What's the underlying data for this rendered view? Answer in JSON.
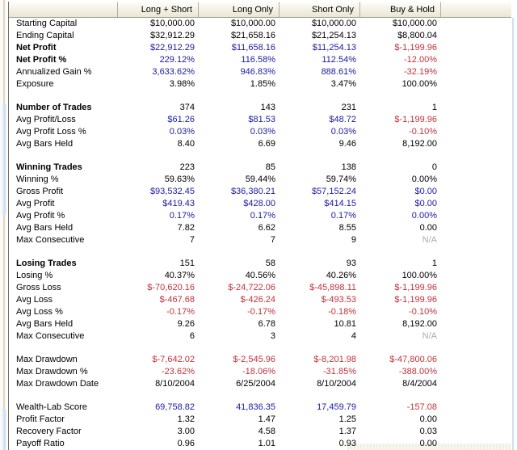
{
  "table": {
    "columns": [
      {
        "key": "label",
        "label": ""
      },
      {
        "key": "long-short",
        "label": "Long + Short"
      },
      {
        "key": "long-only",
        "label": "Long Only"
      },
      {
        "key": "short-only",
        "label": "Short Only"
      },
      {
        "key": "buy-hold",
        "label": "Buy & Hold"
      }
    ],
    "color_map": {
      "k": "#000000",
      "b": "#1A1AA6",
      "r": "#C2323A",
      "g": "#ABABAB"
    },
    "rows": [
      {
        "label": "Starting Capital",
        "bold": false,
        "values": [
          "$10,000.00",
          "$10,000.00",
          "$10,000.00",
          "$10,000.00"
        ],
        "colors": [
          "k",
          "k",
          "k",
          "k"
        ]
      },
      {
        "label": "Ending Capital",
        "bold": false,
        "values": [
          "$32,912.29",
          "$21,658.16",
          "$21,254.13",
          "$8,800.04"
        ],
        "colors": [
          "k",
          "k",
          "k",
          "k"
        ]
      },
      {
        "label": "Net Profit",
        "bold": true,
        "values": [
          "$22,912.29",
          "$11,658.16",
          "$11,254.13",
          "$-1,199.96"
        ],
        "colors": [
          "b",
          "b",
          "b",
          "r"
        ]
      },
      {
        "label": "Net Profit %",
        "bold": true,
        "values": [
          "229.12%",
          "116.58%",
          "112.54%",
          "-12.00%"
        ],
        "colors": [
          "b",
          "b",
          "b",
          "r"
        ]
      },
      {
        "label": "Annualized Gain %",
        "bold": false,
        "values": [
          "3,633.62%",
          "946.83%",
          "888.61%",
          "-32.19%"
        ],
        "colors": [
          "b",
          "b",
          "b",
          "r"
        ]
      },
      {
        "label": "Exposure",
        "bold": false,
        "values": [
          "3.98%",
          "1.85%",
          "3.47%",
          "100.00%"
        ],
        "colors": [
          "k",
          "k",
          "k",
          "k"
        ]
      },
      {
        "spacer": true
      },
      {
        "label": "Number of Trades",
        "bold": true,
        "values": [
          "374",
          "143",
          "231",
          "1"
        ],
        "colors": [
          "k",
          "k",
          "k",
          "k"
        ]
      },
      {
        "label": "Avg Profit/Loss",
        "bold": false,
        "values": [
          "$61.26",
          "$81.53",
          "$48.72",
          "$-1,199.96"
        ],
        "colors": [
          "b",
          "b",
          "b",
          "r"
        ]
      },
      {
        "label": "Avg Profit Loss %",
        "bold": false,
        "values": [
          "0.03%",
          "0.03%",
          "0.03%",
          "-0.10%"
        ],
        "colors": [
          "b",
          "b",
          "b",
          "r"
        ]
      },
      {
        "label": "Avg Bars Held",
        "bold": false,
        "values": [
          "8.40",
          "6.69",
          "9.46",
          "8,192.00"
        ],
        "colors": [
          "k",
          "k",
          "k",
          "k"
        ]
      },
      {
        "spacer": true
      },
      {
        "label": "Winning Trades",
        "bold": true,
        "values": [
          "223",
          "85",
          "138",
          "0"
        ],
        "colors": [
          "k",
          "k",
          "k",
          "k"
        ]
      },
      {
        "label": "Winning %",
        "bold": false,
        "values": [
          "59.63%",
          "59.44%",
          "59.74%",
          "0.00%"
        ],
        "colors": [
          "k",
          "k",
          "k",
          "k"
        ]
      },
      {
        "label": "Gross Profit",
        "bold": false,
        "values": [
          "$93,532.45",
          "$36,380.21",
          "$57,152.24",
          "$0.00"
        ],
        "colors": [
          "b",
          "b",
          "b",
          "b"
        ]
      },
      {
        "label": "Avg Profit",
        "bold": false,
        "values": [
          "$419.43",
          "$428.00",
          "$414.15",
          "$0.00"
        ],
        "colors": [
          "b",
          "b",
          "b",
          "b"
        ]
      },
      {
        "label": "Avg Profit %",
        "bold": false,
        "values": [
          "0.17%",
          "0.17%",
          "0.17%",
          "0.00%"
        ],
        "colors": [
          "b",
          "b",
          "b",
          "b"
        ]
      },
      {
        "label": "Avg Bars Held",
        "bold": false,
        "values": [
          "7.82",
          "6.62",
          "8.55",
          "0.00"
        ],
        "colors": [
          "k",
          "k",
          "k",
          "k"
        ]
      },
      {
        "label": "Max Consecutive",
        "bold": false,
        "values": [
          "7",
          "7",
          "9",
          "N/A"
        ],
        "colors": [
          "k",
          "k",
          "k",
          "g"
        ]
      },
      {
        "spacer": true
      },
      {
        "label": "Losing Trades",
        "bold": true,
        "values": [
          "151",
          "58",
          "93",
          "1"
        ],
        "colors": [
          "k",
          "k",
          "k",
          "k"
        ]
      },
      {
        "label": "Losing %",
        "bold": false,
        "values": [
          "40.37%",
          "40.56%",
          "40.26%",
          "100.00%"
        ],
        "colors": [
          "k",
          "k",
          "k",
          "k"
        ]
      },
      {
        "label": "Gross Loss",
        "bold": false,
        "values": [
          "$-70,620.16",
          "$-24,722.06",
          "$-45,898.11",
          "$-1,199.96"
        ],
        "colors": [
          "r",
          "r",
          "r",
          "r"
        ]
      },
      {
        "label": "Avg Loss",
        "bold": false,
        "values": [
          "$-467.68",
          "$-426.24",
          "$-493.53",
          "$-1,199.96"
        ],
        "colors": [
          "r",
          "r",
          "r",
          "r"
        ]
      },
      {
        "label": "Avg Loss %",
        "bold": false,
        "values": [
          "-0.17%",
          "-0.17%",
          "-0.18%",
          "-0.10%"
        ],
        "colors": [
          "r",
          "r",
          "r",
          "r"
        ]
      },
      {
        "label": "Avg Bars Held",
        "bold": false,
        "values": [
          "9.26",
          "6.78",
          "10.81",
          "8,192.00"
        ],
        "colors": [
          "k",
          "k",
          "k",
          "k"
        ]
      },
      {
        "label": "Max Consecutive",
        "bold": false,
        "values": [
          "6",
          "3",
          "4",
          "N/A"
        ],
        "colors": [
          "k",
          "k",
          "k",
          "g"
        ]
      },
      {
        "spacer": true
      },
      {
        "label": "Max Drawdown",
        "bold": false,
        "values": [
          "$-7,642.02",
          "$-2,545.96",
          "$-8,201.98",
          "$-47,800.06"
        ],
        "colors": [
          "r",
          "r",
          "r",
          "r"
        ]
      },
      {
        "label": "Max Drawdown %",
        "bold": false,
        "values": [
          "-23.62%",
          "-18.06%",
          "-31.85%",
          "-388.00%"
        ],
        "colors": [
          "r",
          "r",
          "r",
          "r"
        ]
      },
      {
        "label": "Max Drawdown Date",
        "bold": false,
        "values": [
          "8/10/2004",
          "6/25/2004",
          "8/10/2004",
          "8/4/2004"
        ],
        "colors": [
          "k",
          "k",
          "k",
          "k"
        ]
      },
      {
        "spacer": true
      },
      {
        "label": "Wealth-Lab Score",
        "bold": false,
        "values": [
          "69,758.82",
          "41,836.35",
          "17,459.79",
          "-157.08"
        ],
        "colors": [
          "b",
          "b",
          "b",
          "r"
        ]
      },
      {
        "label": "Profit Factor",
        "bold": false,
        "values": [
          "1.32",
          "1.47",
          "1.25",
          "0.00"
        ],
        "colors": [
          "k",
          "k",
          "k",
          "k"
        ]
      },
      {
        "label": "Recovery Factor",
        "bold": false,
        "values": [
          "3.00",
          "4.58",
          "1.37",
          "0.03"
        ],
        "colors": [
          "k",
          "k",
          "k",
          "k"
        ]
      },
      {
        "label": "Payoff Ratio",
        "bold": false,
        "values": [
          "0.96",
          "1.01",
          "0.93",
          "0.00"
        ],
        "colors": [
          "k",
          "k",
          "k",
          "k"
        ]
      }
    ]
  }
}
